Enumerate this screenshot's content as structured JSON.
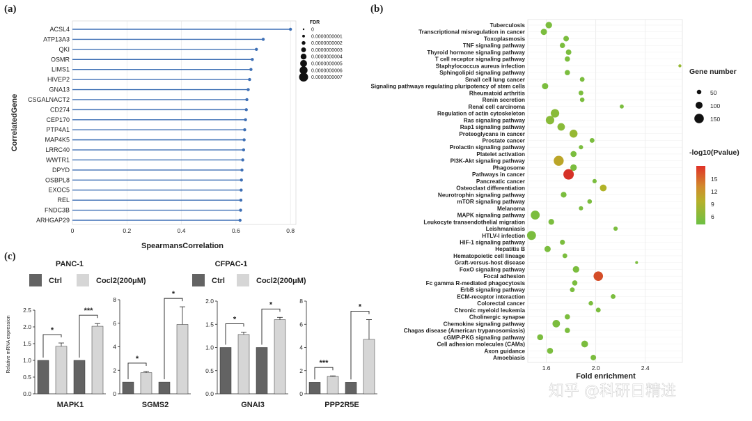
{
  "panels": {
    "a": "(a)",
    "b": "(b)",
    "c": "(c)"
  },
  "watermark": "知乎 @科研日精进",
  "chart_data": [
    {
      "id": "a",
      "type": "lollipop",
      "xlabel": "SpearmansCorrelation",
      "ylabel": "CorrelatedGene",
      "xlim": [
        0,
        0.82
      ],
      "xticks": [
        "0",
        "0.2",
        "0.4",
        "0.6",
        "0.8"
      ],
      "xtick_values": [
        0,
        0.2,
        0.4,
        0.6,
        0.8
      ],
      "genes": [
        "ACSL4",
        "ATP13A3",
        "QKI",
        "OSMR",
        "LIMS1",
        "HIVEP2",
        "GNA13",
        "CSGALNACT2",
        "CD274",
        "CEP170",
        "PTP4A1",
        "MAP4K5",
        "LRRC40",
        "WWTR1",
        "DPYD",
        "OSBPL8",
        "EXOC5",
        "REL",
        "FNDC3B",
        "ARHGAP29"
      ],
      "values": [
        0.8,
        0.7,
        0.675,
        0.66,
        0.655,
        0.65,
        0.645,
        0.64,
        0.638,
        0.635,
        0.632,
        0.63,
        0.628,
        0.625,
        0.622,
        0.62,
        0.619,
        0.618,
        0.617,
        0.615
      ],
      "fdr_legend": {
        "title": "FDR",
        "entries": [
          "0",
          "0.0000000001",
          "0.0000000002",
          "0.0000000003",
          "0.0000000004",
          "0.0000000005",
          "0.0000000006",
          "0.0000000007"
        ]
      }
    },
    {
      "id": "b",
      "type": "scatter",
      "xlabel": "Fold enrichment",
      "xlim": [
        1.45,
        2.7
      ],
      "xticks": [
        "1.6",
        "2.0",
        "2.4"
      ],
      "xtick_values": [
        1.6,
        2.0,
        2.4
      ],
      "pathways": [
        {
          "name": "Tuberculosis",
          "fe": 1.62,
          "count": 90,
          "p": 6
        },
        {
          "name": "Transcriptional misregulation in cancer",
          "fe": 1.58,
          "count": 85,
          "p": 6
        },
        {
          "name": "Toxoplasmosis",
          "fe": 1.76,
          "count": 70,
          "p": 6
        },
        {
          "name": "TNF signaling pathway",
          "fe": 1.73,
          "count": 65,
          "p": 6
        },
        {
          "name": "Thyroid hormone signaling pathway",
          "fe": 1.78,
          "count": 70,
          "p": 6
        },
        {
          "name": "T cell receptor signaling pathway",
          "fe": 1.77,
          "count": 65,
          "p": 6
        },
        {
          "name": "Staphylococcus aureus infection",
          "fe": 2.68,
          "count": 20,
          "p": 8
        },
        {
          "name": "Sphingolipid signaling pathway",
          "fe": 1.77,
          "count": 65,
          "p": 6
        },
        {
          "name": "Small cell lung cancer",
          "fe": 1.89,
          "count": 55,
          "p": 6
        },
        {
          "name": "Signaling pathways regulating pluripotency of stem cells",
          "fe": 1.59,
          "count": 85,
          "p": 6
        },
        {
          "name": "Rheumatoid arthritis",
          "fe": 1.88,
          "count": 55,
          "p": 6
        },
        {
          "name": "Renin secretion",
          "fe": 1.89,
          "count": 50,
          "p": 6
        },
        {
          "name": "Renal cell carcinoma",
          "fe": 2.21,
          "count": 40,
          "p": 6
        },
        {
          "name": "Regulation of actin cytoskeleton",
          "fe": 1.67,
          "count": 130,
          "p": 7
        },
        {
          "name": "Ras signaling pathway",
          "fe": 1.63,
          "count": 130,
          "p": 7
        },
        {
          "name": "Rap1 signaling pathway",
          "fe": 1.72,
          "count": 110,
          "p": 7
        },
        {
          "name": "Proteoglycans in cancer",
          "fe": 1.82,
          "count": 120,
          "p": 8
        },
        {
          "name": "Prostate cancer",
          "fe": 1.97,
          "count": 55,
          "p": 6
        },
        {
          "name": "Prolactin signaling pathway",
          "fe": 1.88,
          "count": 45,
          "p": 6
        },
        {
          "name": "Platelet activation",
          "fe": 1.82,
          "count": 80,
          "p": 6
        },
        {
          "name": "PI3K-Akt signaling pathway",
          "fe": 1.7,
          "count": 160,
          "p": 11
        },
        {
          "name": "Phagosome",
          "fe": 1.82,
          "count": 90,
          "p": 6
        },
        {
          "name": "Pathways in cancer",
          "fe": 1.78,
          "count": 170,
          "p": 16
        },
        {
          "name": "Pancreatic cancer",
          "fe": 1.99,
          "count": 45,
          "p": 6
        },
        {
          "name": "Osteoclast differentiation",
          "fe": 2.06,
          "count": 95,
          "p": 10
        },
        {
          "name": "Neurotrophin signaling pathway",
          "fe": 1.74,
          "count": 75,
          "p": 6
        },
        {
          "name": "mTOR signaling pathway",
          "fe": 1.95,
          "count": 50,
          "p": 6
        },
        {
          "name": "Melanoma",
          "fe": 1.88,
          "count": 45,
          "p": 6
        },
        {
          "name": "MAPK signaling pathway",
          "fe": 1.51,
          "count": 140,
          "p": 6
        },
        {
          "name": "Leukocyte transendothelial migration",
          "fe": 1.64,
          "count": 75,
          "p": 6
        },
        {
          "name": "Leishmaniasis",
          "fe": 2.16,
          "count": 45,
          "p": 6
        },
        {
          "name": "HTLV-I infection",
          "fe": 1.48,
          "count": 140,
          "p": 6
        },
        {
          "name": "HIF-1 signaling pathway",
          "fe": 1.73,
          "count": 60,
          "p": 6
        },
        {
          "name": "Hepatitis B",
          "fe": 1.61,
          "count": 85,
          "p": 6
        },
        {
          "name": "Hematopoietic cell lineage",
          "fe": 1.75,
          "count": 55,
          "p": 6
        },
        {
          "name": "Graft-versus-host disease",
          "fe": 2.33,
          "count": 15,
          "p": 6
        },
        {
          "name": "FoxO signaling pathway",
          "fe": 1.84,
          "count": 90,
          "p": 6
        },
        {
          "name": "Focal adhesion",
          "fe": 2.02,
          "count": 150,
          "p": 15
        },
        {
          "name": "Fc gamma R-mediated phagocytosis",
          "fe": 1.83,
          "count": 65,
          "p": 6
        },
        {
          "name": "ErbB signaling pathway",
          "fe": 1.81,
          "count": 55,
          "p": 6
        },
        {
          "name": "ECM-receptor interaction",
          "fe": 2.14,
          "count": 55,
          "p": 6
        },
        {
          "name": "Colorectal cancer",
          "fe": 1.96,
          "count": 50,
          "p": 6
        },
        {
          "name": "Chronic myeloid leukemia",
          "fe": 2.02,
          "count": 55,
          "p": 6
        },
        {
          "name": "Cholinergic synapse",
          "fe": 1.77,
          "count": 65,
          "p": 6
        },
        {
          "name": "Chemokine signaling pathway",
          "fe": 1.68,
          "count": 110,
          "p": 6
        },
        {
          "name": "Chagas disease (American trypanosomiasis)",
          "fe": 1.77,
          "count": 65,
          "p": 6
        },
        {
          "name": "cGMP-PKG signaling pathway",
          "fe": 1.55,
          "count": 80,
          "p": 6
        },
        {
          "name": "Cell adhesion molecules (CAMs)",
          "fe": 1.91,
          "count": 95,
          "p": 6
        },
        {
          "name": "Axon guidance",
          "fe": 1.63,
          "count": 80,
          "p": 6
        },
        {
          "name": "Amoebiasis",
          "fe": 1.98,
          "count": 70,
          "p": 6
        }
      ],
      "size_legend": {
        "title": "Gene number",
        "entries": [
          "50",
          "100",
          "150"
        ],
        "values": [
          50,
          100,
          150
        ]
      },
      "color_legend": {
        "title": "-log10(Pvalue)",
        "entries": [
          "15",
          "12",
          "9",
          "6"
        ],
        "values": [
          15,
          12,
          9,
          6
        ]
      }
    },
    {
      "id": "c",
      "type": "bar",
      "ylabel": "Relative mRNA expression",
      "groups": [
        {
          "cell": "PANC-1",
          "legend": [
            "Ctrl",
            "Cocl2(200μM)"
          ]
        },
        {
          "cell": "CFPAC-1",
          "legend": [
            "Ctrl",
            "Cocl2(200μM)"
          ]
        }
      ],
      "subplots": [
        {
          "gene": "MAPK1",
          "ylim": [
            0,
            2.5
          ],
          "yticks": [
            "0.0",
            "0.5",
            "1.0",
            "1.5",
            "2.0",
            "2.5"
          ],
          "ytick_values": [
            0,
            0.5,
            1,
            1.5,
            2,
            2.5
          ],
          "values": [
            1.0,
            1.42,
            1.0,
            2.02
          ],
          "errors": [
            0,
            0.1,
            0,
            0.08
          ],
          "sig": [
            "*",
            "***"
          ]
        },
        {
          "gene": "SGMS2",
          "ylim": [
            0,
            8
          ],
          "yticks": [
            "0",
            "2",
            "4",
            "6",
            "8"
          ],
          "ytick_values": [
            0,
            2,
            4,
            6,
            8
          ],
          "values": [
            1.0,
            1.8,
            1.0,
            5.9
          ],
          "errors": [
            0,
            0.1,
            0,
            1.5
          ],
          "sig": [
            "*",
            "*"
          ]
        },
        {
          "gene": "GNAI3",
          "ylim": [
            0,
            2.0
          ],
          "yticks": [
            "0.0",
            "0.5",
            "1.0",
            "1.5",
            "2.0"
          ],
          "ytick_values": [
            0,
            0.5,
            1,
            1.5,
            2
          ],
          "values": [
            1.0,
            1.28,
            1.0,
            1.6
          ],
          "errors": [
            0,
            0.05,
            0,
            0.05
          ],
          "sig": [
            "*",
            "*"
          ]
        },
        {
          "gene": "PPP2R5E",
          "ylim": [
            0,
            8
          ],
          "yticks": [
            "0",
            "2",
            "4",
            "6",
            "8"
          ],
          "ytick_values": [
            0,
            2,
            4,
            6,
            8
          ],
          "values": [
            1.0,
            1.5,
            1.0,
            4.7
          ],
          "errors": [
            0,
            0.05,
            0,
            1.7
          ],
          "sig": [
            "***",
            "*"
          ]
        }
      ]
    }
  ]
}
